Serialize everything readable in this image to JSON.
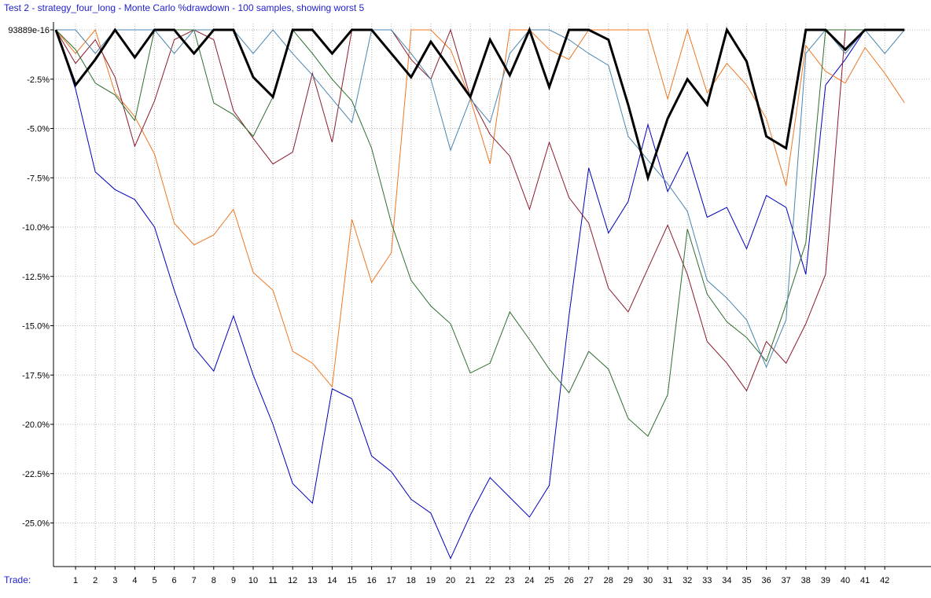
{
  "chart_data": {
    "type": "line",
    "title": "Test 2 - strategy_four_long - Monte Carlo %drawdown - 100 samples, showing worst 5",
    "xlabel": "Trade:",
    "ylabel": "",
    "x": [
      0,
      1,
      2,
      3,
      4,
      5,
      6,
      7,
      8,
      9,
      10,
      11,
      12,
      13,
      14,
      15,
      16,
      17,
      18,
      19,
      20,
      21,
      22,
      23,
      24,
      25,
      26,
      27,
      28,
      29,
      30,
      31,
      32,
      33,
      34,
      35,
      36,
      37,
      38,
      39,
      40,
      41,
      42,
      43
    ],
    "x_tick_labels": [
      "1",
      "2",
      "3",
      "4",
      "5",
      "6",
      "7",
      "8",
      "9",
      "10",
      "11",
      "12",
      "13",
      "14",
      "15",
      "16",
      "17",
      "18",
      "19",
      "20",
      "21",
      "22",
      "23",
      "24",
      "25",
      "26",
      "27",
      "28",
      "29",
      "30",
      "31",
      "32",
      "33",
      "34",
      "35",
      "36",
      "37",
      "38",
      "39",
      "40",
      "41",
      "42"
    ],
    "ylim": [
      -27.2,
      0
    ],
    "y_tick_labels": [
      "93889e-16",
      "-2.5%",
      "-5.0%",
      "-7.5%",
      "-10.0%",
      "-12.5%",
      "-15.0%",
      "-17.5%",
      "-20.0%",
      "-22.5%",
      "-25.0%"
    ],
    "y_tick_values": [
      0,
      -2.5,
      -5,
      -7.5,
      -10,
      -12.5,
      -15,
      -17.5,
      -20,
      -22.5,
      -25
    ],
    "grid": true,
    "series": [
      {
        "color": "#0000bb",
        "width": 1,
        "values": [
          0,
          -3.0,
          -7.2,
          -8.1,
          -8.6,
          -10.0,
          -13.2,
          -16.1,
          -17.3,
          -14.5,
          -17.5,
          -20.0,
          -23.0,
          -24.0,
          -18.2,
          -18.7,
          -21.6,
          -22.4,
          -23.8,
          -24.5,
          -26.8,
          -24.6,
          -22.7,
          -23.7,
          -24.7,
          -23.1,
          -14.5,
          -7.0,
          -10.3,
          -8.7,
          -4.8,
          -8.2,
          -6.2,
          -9.5,
          -9.0,
          -11.1,
          -8.4,
          -9.0,
          -12.4,
          -2.8,
          -1.5,
          0,
          0,
          0
        ]
      },
      {
        "color": "#ee7722",
        "width": 1,
        "values": [
          0,
          -1.2,
          0,
          -3.2,
          -4.4,
          -6.3,
          -9.8,
          -10.9,
          -10.4,
          -9.1,
          -12.3,
          -13.2,
          -16.3,
          -16.9,
          -18.1,
          -9.6,
          -12.8,
          -11.3,
          0,
          0,
          -1.0,
          -3.5,
          -6.8,
          0,
          0,
          -1.0,
          -1.5,
          0,
          0,
          0,
          0,
          -3.5,
          0,
          -3.2,
          -1.7,
          -2.8,
          -4.5,
          -7.9,
          -0.8,
          -2.1,
          -2.7,
          -0.9,
          -2.2,
          -3.7
        ]
      },
      {
        "color": "#8b1a2b",
        "width": 1,
        "values": [
          0,
          -1.7,
          -0.5,
          -2.4,
          -5.9,
          -3.6,
          -0.5,
          0,
          -0.5,
          -4.1,
          -5.5,
          -6.8,
          -6.2,
          -2.2,
          -5.7,
          0,
          0,
          0,
          -1.5,
          -2.5,
          0,
          -3.4,
          -5.3,
          -6.4,
          -9.1,
          -5.7,
          -8.5,
          -9.8,
          -13.1,
          -14.3,
          -12.1,
          -9.9,
          -12.4,
          -15.8,
          -16.9,
          -18.3,
          -15.8,
          -16.9,
          -14.9,
          -12.4,
          0,
          0,
          0,
          0
        ]
      },
      {
        "color": "#2e6e2e",
        "width": 1,
        "values": [
          0,
          -1.0,
          -2.7,
          -3.3,
          -4.6,
          0,
          0,
          0,
          -3.7,
          -4.3,
          -5.4,
          -3.4,
          0,
          -1.2,
          -2.5,
          -3.6,
          -6.0,
          -9.8,
          -12.7,
          -14.0,
          -14.9,
          -17.4,
          -16.9,
          -14.3,
          -15.7,
          -17.2,
          -18.4,
          -16.3,
          -17.2,
          -19.7,
          -20.6,
          -18.5,
          -10.1,
          -13.4,
          -14.8,
          -15.6,
          -16.8,
          -13.9,
          -10.8,
          0,
          0,
          0,
          0,
          0
        ]
      },
      {
        "color": "#4a86b0",
        "width": 1,
        "values": [
          0,
          0,
          -1.2,
          0,
          0,
          0,
          -1.2,
          0,
          0,
          0,
          -1.2,
          0,
          -1.2,
          -2.3,
          -3.5,
          -4.7,
          0,
          0,
          -1.2,
          -2.5,
          -6.1,
          -3.5,
          -4.7,
          -1.2,
          0,
          0,
          -0.5,
          -1.2,
          -1.8,
          -5.4,
          -6.6,
          -7.8,
          -9.2,
          -12.7,
          -13.6,
          -14.7,
          -17.1,
          -14.7,
          -1.2,
          0,
          -1.2,
          0,
          -1.2,
          0
        ]
      },
      {
        "color": "#000000",
        "width": 3,
        "values": [
          0,
          -2.8,
          -1.5,
          0,
          -1.4,
          0,
          0,
          -1.2,
          0,
          0,
          -2.4,
          -3.4,
          0,
          0,
          -1.2,
          0,
          0,
          -1.2,
          -2.4,
          -0.6,
          -2.0,
          -3.4,
          -0.5,
          -2.3,
          0,
          -2.9,
          0,
          0,
          -0.5,
          -3.8,
          -7.5,
          -4.5,
          -2.5,
          -3.8,
          0,
          -1.6,
          -5.4,
          -6.0,
          0,
          0,
          -1.0,
          0,
          0,
          0
        ]
      }
    ]
  }
}
